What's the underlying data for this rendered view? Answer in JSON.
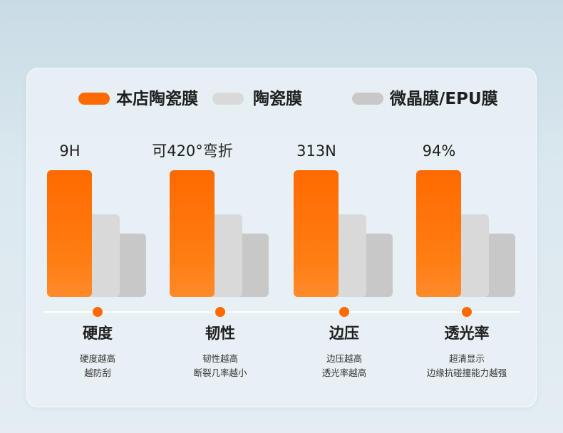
{
  "chart_data": {
    "type": "bar",
    "series": [
      {
        "name": "本店陶瓷膜",
        "color": "#ff6a00",
        "values": [
          100,
          100,
          100,
          100
        ]
      },
      {
        "name": "陶瓷膜",
        "color": "#d9d9d9",
        "values": [
          65,
          65,
          65,
          65
        ]
      },
      {
        "name": "微晶膜/EPU膜",
        "color": "#c8c8c8",
        "values": [
          50,
          50,
          50,
          50
        ]
      }
    ],
    "categories": [
      "硬度",
      "韧性",
      "边压",
      "透光率"
    ],
    "value_labels": [
      "9H",
      "可420°弯折",
      "313N",
      "94%"
    ],
    "descriptions": [
      [
        "硬度越高",
        "越防刮"
      ],
      [
        "韧性越高",
        "断裂几率越小"
      ],
      [
        "边压越高",
        "透光率越高"
      ],
      [
        "超清显示",
        "边缘抗碰撞能力越强"
      ]
    ],
    "legend_position": "top",
    "accent_color": "#ff6a00"
  }
}
